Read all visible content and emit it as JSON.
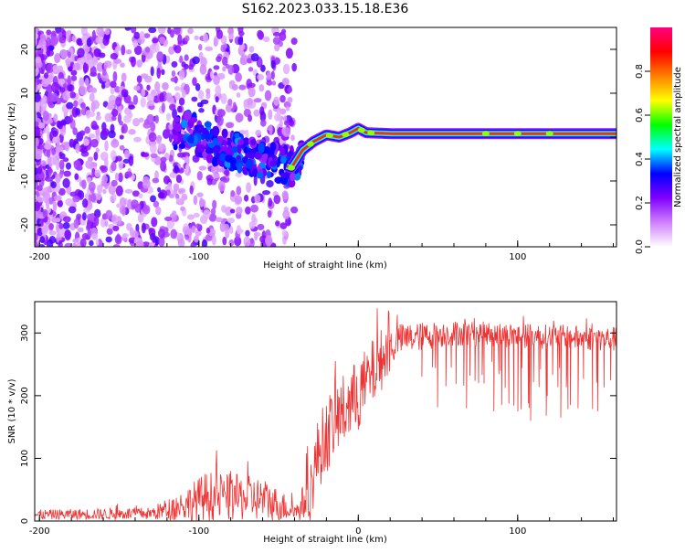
{
  "title": "S162.2023.033.15.18.E36",
  "chart_data": [
    {
      "type": "heatmap",
      "xlabel": "Height of straight line (km)",
      "ylabel": "Frequency (Hz)",
      "xlim": [
        -203,
        162
      ],
      "ylim": [
        -25,
        25
      ],
      "xticks": [
        "-200",
        "-100",
        "0",
        "100"
      ],
      "xtick_values": [
        -200,
        -100,
        0,
        100
      ],
      "yticks": [
        "-20",
        "-10",
        "0",
        "10",
        "20"
      ],
      "ytick_values": [
        -20,
        -10,
        0,
        10,
        20
      ],
      "colorbar": {
        "label": "Normalized spectral amplitude",
        "range": [
          0.0,
          1.0
        ],
        "ticks": [
          "0.0",
          "0.2",
          "0.4",
          "0.6",
          "0.8"
        ],
        "tick_values": [
          0.0,
          0.2,
          0.4,
          0.6,
          0.8
        ],
        "colors": [
          "#ffffff",
          "#d080ff",
          "#8000ff",
          "#0000ff",
          "#00ffff",
          "#00ff00",
          "#ffff00",
          "#ff8000",
          "#ff0000",
          "#ff0080"
        ]
      },
      "ridge": [
        {
          "x": -110,
          "y": 3
        },
        {
          "x": -95,
          "y": -1
        },
        {
          "x": -80,
          "y": -3
        },
        {
          "x": -70,
          "y": -4
        },
        {
          "x": -60,
          "y": -5
        },
        {
          "x": -50,
          "y": -6
        },
        {
          "x": -42,
          "y": -7
        },
        {
          "x": -35,
          "y": -3
        },
        {
          "x": -28,
          "y": -1
        },
        {
          "x": -20,
          "y": 0.5
        },
        {
          "x": -12,
          "y": 0
        },
        {
          "x": -5,
          "y": 1
        },
        {
          "x": 0,
          "y": 2
        },
        {
          "x": 5,
          "y": 1
        },
        {
          "x": 20,
          "y": 0.8
        },
        {
          "x": 60,
          "y": 0.8
        },
        {
          "x": 100,
          "y": 0.8
        },
        {
          "x": 162,
          "y": 0.8
        }
      ],
      "noise_region": {
        "x_from": -203,
        "x_to": -40,
        "y_from": -25,
        "y_to": 25
      },
      "grid": false
    },
    {
      "type": "line",
      "xlabel": "Height of straight line (km)",
      "ylabel": "SNR (10 * v/v)",
      "xlim": [
        -203,
        162
      ],
      "ylim": [
        0,
        350
      ],
      "xticks": [
        "-200",
        "-100",
        "0",
        "100"
      ],
      "xtick_values": [
        -200,
        -100,
        0,
        100
      ],
      "yticks": [
        "0",
        "100",
        "200",
        "300"
      ],
      "ytick_values": [
        0,
        100,
        200,
        300
      ],
      "series": [
        {
          "color": "#ee3333",
          "envelope": [
            {
              "x": -203,
              "base": 10,
              "amp": 8
            },
            {
              "x": -130,
              "base": 12,
              "amp": 10
            },
            {
              "x": -110,
              "base": 25,
              "amp": 25
            },
            {
              "x": -95,
              "base": 40,
              "amp": 40
            },
            {
              "x": -60,
              "base": 35,
              "amp": 35
            },
            {
              "x": -38,
              "base": 15,
              "amp": 15
            },
            {
              "x": -30,
              "base": 50,
              "amp": 50
            },
            {
              "x": -25,
              "base": 110,
              "amp": 60
            },
            {
              "x": -15,
              "base": 160,
              "amp": 60
            },
            {
              "x": 0,
              "base": 200,
              "amp": 60
            },
            {
              "x": 15,
              "base": 260,
              "amp": 50
            },
            {
              "x": 25,
              "base": 290,
              "amp": 25
            },
            {
              "x": 60,
              "base": 300,
              "amp": 20
            },
            {
              "x": 110,
              "base": 295,
              "amp": 20
            },
            {
              "x": 162,
              "base": 290,
              "amp": 20
            }
          ],
          "dropouts": [
            {
              "x": 40,
              "y": 230
            },
            {
              "x": 55,
              "y": 215
            },
            {
              "x": 68,
              "y": 180
            },
            {
              "x": 85,
              "y": 175
            },
            {
              "x": 90,
              "y": 185
            },
            {
              "x": 100,
              "y": 175
            },
            {
              "x": 108,
              "y": 160
            },
            {
              "x": 118,
              "y": 168
            },
            {
              "x": 127,
              "y": 165
            },
            {
              "x": 138,
              "y": 180
            },
            {
              "x": 150,
              "y": 175
            }
          ]
        }
      ],
      "grid": false
    }
  ]
}
